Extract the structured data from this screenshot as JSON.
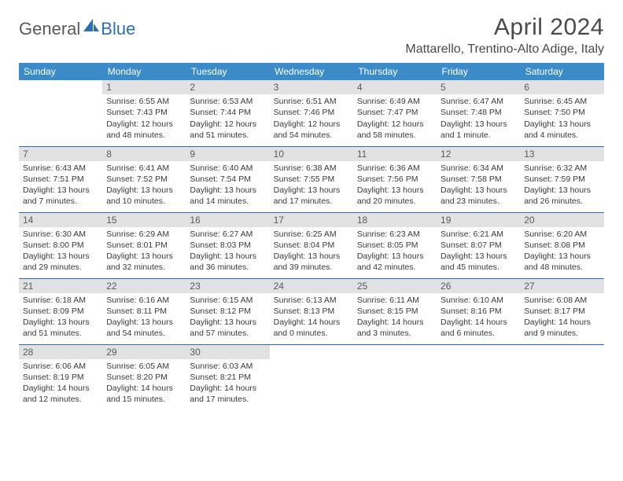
{
  "logo": {
    "text1": "General",
    "text2": "Blue"
  },
  "title": "April 2024",
  "location": "Mattarello, Trentino-Alto Adige, Italy",
  "header_bg": "#3b8bc9",
  "header_fg": "#ffffff",
  "day_bg": "#e2e2e2",
  "border_color": "#2a6fb5",
  "weekdays": [
    "Sunday",
    "Monday",
    "Tuesday",
    "Wednesday",
    "Thursday",
    "Friday",
    "Saturday"
  ],
  "weeks": [
    [
      {
        "n": "",
        "sr": "",
        "ss": "",
        "d1": "",
        "d2": ""
      },
      {
        "n": "1",
        "sr": "Sunrise: 6:55 AM",
        "ss": "Sunset: 7:43 PM",
        "d1": "Daylight: 12 hours",
        "d2": "and 48 minutes."
      },
      {
        "n": "2",
        "sr": "Sunrise: 6:53 AM",
        "ss": "Sunset: 7:44 PM",
        "d1": "Daylight: 12 hours",
        "d2": "and 51 minutes."
      },
      {
        "n": "3",
        "sr": "Sunrise: 6:51 AM",
        "ss": "Sunset: 7:46 PM",
        "d1": "Daylight: 12 hours",
        "d2": "and 54 minutes."
      },
      {
        "n": "4",
        "sr": "Sunrise: 6:49 AM",
        "ss": "Sunset: 7:47 PM",
        "d1": "Daylight: 12 hours",
        "d2": "and 58 minutes."
      },
      {
        "n": "5",
        "sr": "Sunrise: 6:47 AM",
        "ss": "Sunset: 7:48 PM",
        "d1": "Daylight: 13 hours",
        "d2": "and 1 minute."
      },
      {
        "n": "6",
        "sr": "Sunrise: 6:45 AM",
        "ss": "Sunset: 7:50 PM",
        "d1": "Daylight: 13 hours",
        "d2": "and 4 minutes."
      }
    ],
    [
      {
        "n": "7",
        "sr": "Sunrise: 6:43 AM",
        "ss": "Sunset: 7:51 PM",
        "d1": "Daylight: 13 hours",
        "d2": "and 7 minutes."
      },
      {
        "n": "8",
        "sr": "Sunrise: 6:41 AM",
        "ss": "Sunset: 7:52 PM",
        "d1": "Daylight: 13 hours",
        "d2": "and 10 minutes."
      },
      {
        "n": "9",
        "sr": "Sunrise: 6:40 AM",
        "ss": "Sunset: 7:54 PM",
        "d1": "Daylight: 13 hours",
        "d2": "and 14 minutes."
      },
      {
        "n": "10",
        "sr": "Sunrise: 6:38 AM",
        "ss": "Sunset: 7:55 PM",
        "d1": "Daylight: 13 hours",
        "d2": "and 17 minutes."
      },
      {
        "n": "11",
        "sr": "Sunrise: 6:36 AM",
        "ss": "Sunset: 7:56 PM",
        "d1": "Daylight: 13 hours",
        "d2": "and 20 minutes."
      },
      {
        "n": "12",
        "sr": "Sunrise: 6:34 AM",
        "ss": "Sunset: 7:58 PM",
        "d1": "Daylight: 13 hours",
        "d2": "and 23 minutes."
      },
      {
        "n": "13",
        "sr": "Sunrise: 6:32 AM",
        "ss": "Sunset: 7:59 PM",
        "d1": "Daylight: 13 hours",
        "d2": "and 26 minutes."
      }
    ],
    [
      {
        "n": "14",
        "sr": "Sunrise: 6:30 AM",
        "ss": "Sunset: 8:00 PM",
        "d1": "Daylight: 13 hours",
        "d2": "and 29 minutes."
      },
      {
        "n": "15",
        "sr": "Sunrise: 6:29 AM",
        "ss": "Sunset: 8:01 PM",
        "d1": "Daylight: 13 hours",
        "d2": "and 32 minutes."
      },
      {
        "n": "16",
        "sr": "Sunrise: 6:27 AM",
        "ss": "Sunset: 8:03 PM",
        "d1": "Daylight: 13 hours",
        "d2": "and 36 minutes."
      },
      {
        "n": "17",
        "sr": "Sunrise: 6:25 AM",
        "ss": "Sunset: 8:04 PM",
        "d1": "Daylight: 13 hours",
        "d2": "and 39 minutes."
      },
      {
        "n": "18",
        "sr": "Sunrise: 6:23 AM",
        "ss": "Sunset: 8:05 PM",
        "d1": "Daylight: 13 hours",
        "d2": "and 42 minutes."
      },
      {
        "n": "19",
        "sr": "Sunrise: 6:21 AM",
        "ss": "Sunset: 8:07 PM",
        "d1": "Daylight: 13 hours",
        "d2": "and 45 minutes."
      },
      {
        "n": "20",
        "sr": "Sunrise: 6:20 AM",
        "ss": "Sunset: 8:08 PM",
        "d1": "Daylight: 13 hours",
        "d2": "and 48 minutes."
      }
    ],
    [
      {
        "n": "21",
        "sr": "Sunrise: 6:18 AM",
        "ss": "Sunset: 8:09 PM",
        "d1": "Daylight: 13 hours",
        "d2": "and 51 minutes."
      },
      {
        "n": "22",
        "sr": "Sunrise: 6:16 AM",
        "ss": "Sunset: 8:11 PM",
        "d1": "Daylight: 13 hours",
        "d2": "and 54 minutes."
      },
      {
        "n": "23",
        "sr": "Sunrise: 6:15 AM",
        "ss": "Sunset: 8:12 PM",
        "d1": "Daylight: 13 hours",
        "d2": "and 57 minutes."
      },
      {
        "n": "24",
        "sr": "Sunrise: 6:13 AM",
        "ss": "Sunset: 8:13 PM",
        "d1": "Daylight: 14 hours",
        "d2": "and 0 minutes."
      },
      {
        "n": "25",
        "sr": "Sunrise: 6:11 AM",
        "ss": "Sunset: 8:15 PM",
        "d1": "Daylight: 14 hours",
        "d2": "and 3 minutes."
      },
      {
        "n": "26",
        "sr": "Sunrise: 6:10 AM",
        "ss": "Sunset: 8:16 PM",
        "d1": "Daylight: 14 hours",
        "d2": "and 6 minutes."
      },
      {
        "n": "27",
        "sr": "Sunrise: 6:08 AM",
        "ss": "Sunset: 8:17 PM",
        "d1": "Daylight: 14 hours",
        "d2": "and 9 minutes."
      }
    ],
    [
      {
        "n": "28",
        "sr": "Sunrise: 6:06 AM",
        "ss": "Sunset: 8:19 PM",
        "d1": "Daylight: 14 hours",
        "d2": "and 12 minutes."
      },
      {
        "n": "29",
        "sr": "Sunrise: 6:05 AM",
        "ss": "Sunset: 8:20 PM",
        "d1": "Daylight: 14 hours",
        "d2": "and 15 minutes."
      },
      {
        "n": "30",
        "sr": "Sunrise: 6:03 AM",
        "ss": "Sunset: 8:21 PM",
        "d1": "Daylight: 14 hours",
        "d2": "and 17 minutes."
      },
      {
        "n": "",
        "sr": "",
        "ss": "",
        "d1": "",
        "d2": ""
      },
      {
        "n": "",
        "sr": "",
        "ss": "",
        "d1": "",
        "d2": ""
      },
      {
        "n": "",
        "sr": "",
        "ss": "",
        "d1": "",
        "d2": ""
      },
      {
        "n": "",
        "sr": "",
        "ss": "",
        "d1": "",
        "d2": ""
      }
    ]
  ]
}
